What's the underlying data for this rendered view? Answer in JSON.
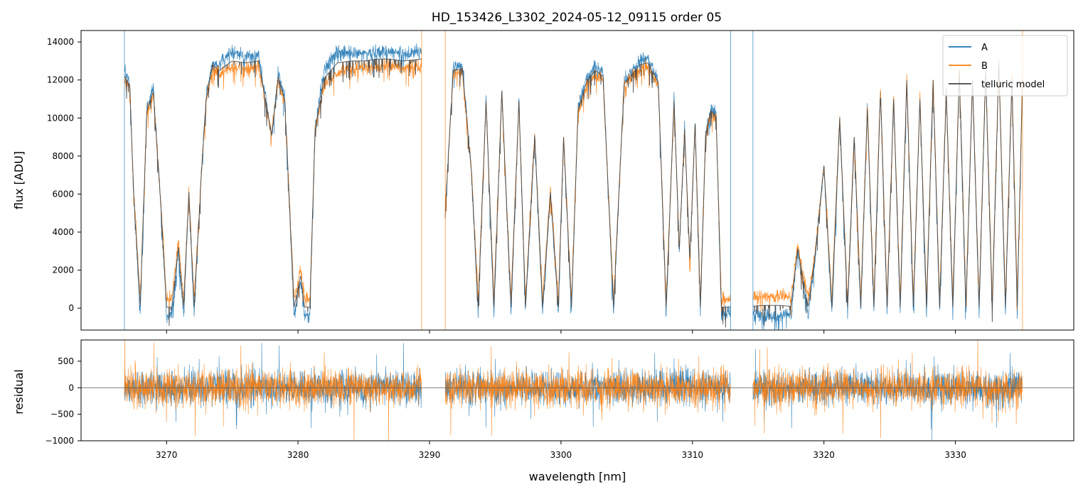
{
  "chart_data": [
    {
      "type": "line",
      "title": "HD_153426_L3302_2024-05-12_09115  order 05",
      "xlabel": "",
      "ylabel": "flux [ADU]",
      "xlim": [
        3263.5,
        3339.0
      ],
      "ylim": [
        -1150,
        14600
      ],
      "yticks": [
        0,
        2000,
        4000,
        6000,
        8000,
        10000,
        12000,
        14000
      ],
      "xticks": [
        3270,
        3280,
        3290,
        3300,
        3310,
        3320,
        3330
      ],
      "show_xtick_labels": false,
      "legend": {
        "position": "top-right",
        "entries": [
          "A",
          "B",
          "telluric model"
        ]
      },
      "segments": [
        [
          3266.8,
          3289.4
        ],
        [
          3291.2,
          3312.9
        ],
        [
          3314.6,
          3335.1
        ]
      ],
      "series": [
        {
          "name": "A",
          "color": "#1f77b4",
          "x": [
            3266.8,
            3267.2,
            3267.5,
            3268.0,
            3268.5,
            3269.0,
            3269.6,
            3270.0,
            3270.4,
            3270.9,
            3271.3,
            3271.7,
            3272.1,
            3272.6,
            3273.0,
            3273.5,
            3274.0,
            3275.0,
            3276.0,
            3277.0,
            3278.0,
            3278.5,
            3279.0,
            3279.7,
            3280.2,
            3280.5,
            3280.9,
            3281.3,
            3282.0,
            3283.0,
            3284.0,
            3285.0,
            3286.0,
            3287.0,
            3288.0,
            3289.4,
            3291.2,
            3291.8,
            3292.5,
            3293.2,
            3293.7,
            3294.3,
            3294.9,
            3295.5,
            3296.2,
            3296.8,
            3297.3,
            3298.0,
            3298.6,
            3299.2,
            3299.8,
            3300.2,
            3300.8,
            3301.3,
            3302.0,
            3302.6,
            3303.2,
            3304.0,
            3304.8,
            3305.4,
            3306.0,
            3306.6,
            3307.4,
            3308.0,
            3308.6,
            3309.0,
            3309.4,
            3309.8,
            3310.2,
            3310.6,
            3311.0,
            3311.4,
            3311.8,
            3312.2,
            3312.9,
            3314.6,
            3315.5,
            3316.5,
            3317.5,
            3318.0,
            3318.8,
            3319.3,
            3320.0,
            3320.6,
            3321.2,
            3321.8,
            3322.3,
            3322.8,
            3323.3,
            3323.8,
            3324.3,
            3324.8,
            3325.3,
            3325.8,
            3326.3,
            3326.8,
            3327.3,
            3327.8,
            3328.3,
            3328.8,
            3329.3,
            3329.8,
            3330.3,
            3330.8,
            3331.3,
            3331.8,
            3332.3,
            3332.8,
            3333.3,
            3333.8,
            3334.3,
            3334.7,
            3335.1
          ],
          "y": [
            12500,
            11800,
            6000,
            -300,
            10500,
            11500,
            5000,
            -400,
            -300,
            3000,
            -300,
            6000,
            -300,
            6500,
            11000,
            13000,
            12800,
            13500,
            13200,
            13400,
            9000,
            12500,
            11000,
            -400,
            1500,
            -400,
            -400,
            9500,
            12600,
            13500,
            13400,
            13400,
            13500,
            13500,
            13400,
            13500,
            5000,
            12700,
            12800,
            7000,
            -300,
            11000,
            -300,
            11500,
            -300,
            11000,
            -300,
            9000,
            -300,
            6000,
            -300,
            9000,
            -300,
            10500,
            12200,
            12800,
            12400,
            -300,
            12000,
            12500,
            13000,
            13200,
            12000,
            -300,
            11000,
            3000,
            9500,
            2500,
            9800,
            -300,
            9200,
            10500,
            10200,
            -300,
            -200,
            -300,
            -350,
            -350,
            -300,
            3000,
            -300,
            2500,
            7500,
            -300,
            10000,
            -300,
            9000,
            -300,
            10500,
            -300,
            11500,
            -300,
            11000,
            -300,
            12000,
            -300,
            11000,
            -300,
            12000,
            -300,
            11500,
            -300,
            12500,
            -300,
            12000,
            -300,
            12500,
            -300,
            13000,
            -300,
            12000,
            -300,
            12000
          ]
        },
        {
          "name": "B",
          "color": "#ff7f0e",
          "x": [
            3266.8,
            3267.2,
            3267.5,
            3268.0,
            3268.5,
            3269.0,
            3269.6,
            3270.0,
            3270.4,
            3270.9,
            3271.3,
            3271.7,
            3272.1,
            3272.6,
            3273.0,
            3273.5,
            3274.0,
            3275.0,
            3276.0,
            3277.0,
            3278.0,
            3278.5,
            3279.0,
            3279.7,
            3280.2,
            3280.5,
            3280.9,
            3281.3,
            3282.0,
            3283.0,
            3284.0,
            3285.0,
            3286.0,
            3287.0,
            3288.0,
            3289.4,
            3291.2,
            3291.8,
            3292.5,
            3293.2,
            3293.7,
            3294.3,
            3294.9,
            3295.5,
            3296.2,
            3296.8,
            3297.3,
            3298.0,
            3298.6,
            3299.2,
            3299.8,
            3300.2,
            3300.8,
            3301.3,
            3302.0,
            3302.6,
            3303.2,
            3304.0,
            3304.8,
            3305.4,
            3306.0,
            3306.6,
            3307.4,
            3308.0,
            3308.6,
            3309.0,
            3309.4,
            3309.8,
            3310.2,
            3310.6,
            3311.0,
            3311.4,
            3311.8,
            3312.2,
            3312.9,
            3314.6,
            3315.5,
            3316.5,
            3317.5,
            3318.0,
            3318.8,
            3319.3,
            3320.0,
            3320.6,
            3321.2,
            3321.8,
            3322.3,
            3322.8,
            3323.3,
            3323.8,
            3324.3,
            3324.8,
            3325.3,
            3325.8,
            3326.3,
            3326.8,
            3327.3,
            3327.8,
            3328.3,
            3328.8,
            3329.3,
            3329.8,
            3330.3,
            3330.8,
            3331.3,
            3331.8,
            3332.3,
            3332.8,
            3333.3,
            3333.8,
            3334.3,
            3334.7,
            3335.1
          ],
          "y": [
            12000,
            11600,
            6200,
            600,
            10300,
            11300,
            5200,
            500,
            500,
            3500,
            500,
            6200,
            500,
            6600,
            10800,
            12600,
            12300,
            12700,
            12600,
            12700,
            9200,
            12000,
            10800,
            500,
            2000,
            500,
            500,
            9300,
            11800,
            12400,
            12600,
            12700,
            12700,
            12800,
            12600,
            12800,
            5200,
            12300,
            12400,
            7200,
            500,
            10800,
            500,
            11300,
            500,
            10800,
            500,
            9200,
            500,
            6300,
            500,
            9000,
            500,
            10300,
            11800,
            12300,
            12000,
            500,
            11700,
            12200,
            12600,
            12700,
            11800,
            500,
            10800,
            3200,
            9300,
            2700,
            9600,
            500,
            9000,
            10300,
            10000,
            500,
            500,
            600,
            650,
            650,
            600,
            3200,
            600,
            2700,
            7600,
            500,
            10100,
            500,
            9100,
            500,
            10600,
            500,
            11600,
            500,
            11100,
            500,
            12100,
            500,
            11100,
            500,
            12100,
            500,
            11600,
            500,
            12600,
            500,
            12100,
            500,
            12600,
            500,
            13000,
            500,
            12100,
            500,
            12100
          ]
        },
        {
          "name": "telluric model",
          "color": "#444444",
          "x": [
            3266.8,
            3267.2,
            3267.5,
            3268.0,
            3268.5,
            3269.0,
            3269.6,
            3270.0,
            3270.4,
            3270.9,
            3271.3,
            3271.7,
            3272.1,
            3272.6,
            3273.0,
            3273.5,
            3274.0,
            3275.0,
            3276.0,
            3277.0,
            3278.0,
            3278.5,
            3279.0,
            3279.7,
            3280.2,
            3280.5,
            3280.9,
            3281.3,
            3282.0,
            3283.0,
            3284.0,
            3285.0,
            3286.0,
            3287.0,
            3288.0,
            3289.4,
            3291.2,
            3291.8,
            3292.5,
            3293.2,
            3293.7,
            3294.3,
            3294.9,
            3295.5,
            3296.2,
            3296.8,
            3297.3,
            3298.0,
            3298.6,
            3299.2,
            3299.8,
            3300.2,
            3300.8,
            3301.3,
            3302.0,
            3302.6,
            3303.2,
            3304.0,
            3304.8,
            3305.4,
            3306.0,
            3306.6,
            3307.4,
            3308.0,
            3308.6,
            3309.0,
            3309.4,
            3309.8,
            3310.2,
            3310.6,
            3311.0,
            3311.4,
            3311.8,
            3312.2,
            3312.9,
            3314.6,
            3315.5,
            3316.5,
            3317.5,
            3318.0,
            3318.8,
            3319.3,
            3320.0,
            3320.6,
            3321.2,
            3321.8,
            3322.3,
            3322.8,
            3323.3,
            3323.8,
            3324.3,
            3324.8,
            3325.3,
            3325.8,
            3326.3,
            3326.8,
            3327.3,
            3327.8,
            3328.3,
            3328.8,
            3329.3,
            3329.8,
            3330.3,
            3330.8,
            3331.3,
            3331.8,
            3332.3,
            3332.8,
            3333.3,
            3333.8,
            3334.3,
            3334.7,
            3335.1
          ],
          "y": [
            12200,
            11700,
            6100,
            100,
            10400,
            11400,
            5100,
            50,
            50,
            3200,
            50,
            6100,
            50,
            6500,
            10900,
            12800,
            12500,
            13000,
            12900,
            13000,
            9100,
            12200,
            10900,
            50,
            1700,
            50,
            50,
            9400,
            12100,
            12900,
            13000,
            13000,
            13100,
            13100,
            13000,
            13100,
            5100,
            12500,
            12600,
            7100,
            50,
            10900,
            50,
            11400,
            50,
            10900,
            50,
            9100,
            50,
            6100,
            50,
            9000,
            50,
            10400,
            12000,
            12500,
            12200,
            50,
            11800,
            12300,
            12800,
            12900,
            11900,
            50,
            10900,
            3100,
            9400,
            2600,
            9700,
            50,
            9100,
            10400,
            10100,
            50,
            50,
            100,
            150,
            150,
            100,
            3100,
            100,
            2600,
            7500,
            50,
            10000,
            50,
            9000,
            50,
            10500,
            50,
            11500,
            50,
            11000,
            50,
            12000,
            50,
            11000,
            50,
            12000,
            50,
            11500,
            50,
            12500,
            50,
            12000,
            50,
            12500,
            50,
            12900,
            50,
            12000,
            50,
            12000
          ]
        }
      ]
    },
    {
      "type": "line",
      "title": "",
      "xlabel": "wavelength [nm]",
      "ylabel": "residual",
      "xlim": [
        3263.5,
        3339.0
      ],
      "ylim": [
        -1000,
        900
      ],
      "yticks": [
        -1000,
        -500,
        0,
        500
      ],
      "xticks": [
        3270,
        3280,
        3290,
        3300,
        3310,
        3320,
        3330
      ],
      "show_xtick_labels": true,
      "zero_line": 0,
      "noise": {
        "A_amplitude": 300,
        "B_amplitude": 330
      },
      "segments": [
        [
          3266.8,
          3289.4
        ],
        [
          3291.2,
          3312.9
        ],
        [
          3314.6,
          3335.1
        ]
      ],
      "series": [
        {
          "name": "",
          "color": "#1f77b4"
        },
        {
          "name": "",
          "color": "#ff7f0e"
        }
      ]
    }
  ]
}
